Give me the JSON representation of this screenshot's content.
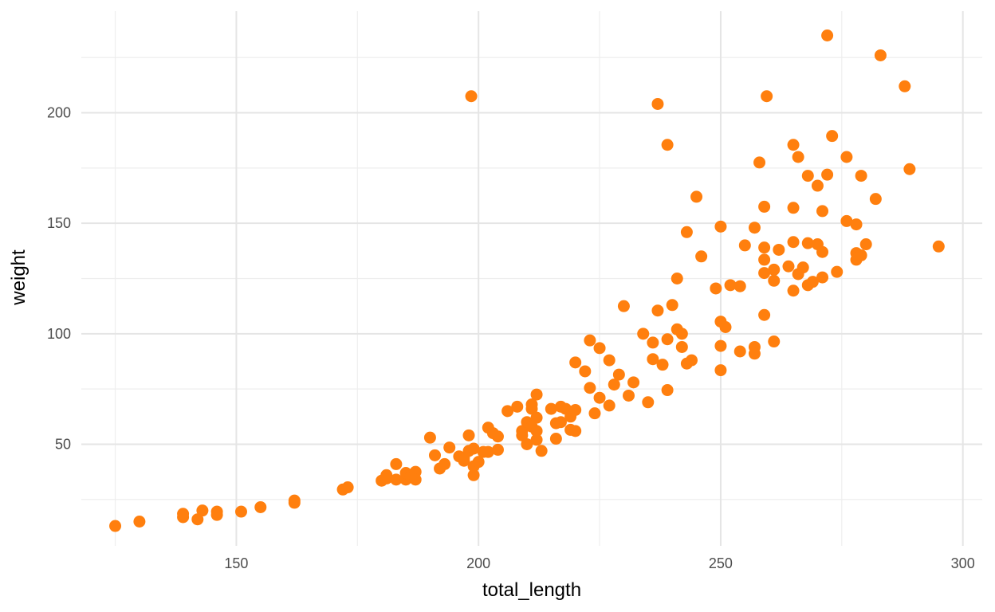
{
  "chart_data": {
    "type": "scatter",
    "xlabel": "total_length",
    "ylabel": "weight",
    "xlim": [
      118,
      304
    ],
    "ylim": [
      4,
      246
    ],
    "x_ticks": [
      150,
      200,
      250,
      300
    ],
    "y_ticks": [
      50,
      100,
      150,
      200
    ],
    "x_tick_labels": [
      "150",
      "200",
      "250",
      "300"
    ],
    "y_tick_labels": [
      "50",
      "100",
      "150",
      "200"
    ],
    "grid": true,
    "legend": "none",
    "point_color": "#FF7F0E",
    "points": [
      [
        125,
        13
      ],
      [
        130,
        15
      ],
      [
        139,
        17
      ],
      [
        139,
        18.5
      ],
      [
        142,
        16
      ],
      [
        143,
        20
      ],
      [
        146,
        18
      ],
      [
        146,
        19.5
      ],
      [
        151,
        19.5
      ],
      [
        155,
        21.5
      ],
      [
        162,
        23.5
      ],
      [
        162,
        24.5
      ],
      [
        172,
        29.5
      ],
      [
        173,
        30.5
      ],
      [
        180,
        33.5
      ],
      [
        181,
        34.5
      ],
      [
        181,
        36
      ],
      [
        183,
        34
      ],
      [
        183,
        41
      ],
      [
        185,
        34
      ],
      [
        185,
        37
      ],
      [
        186,
        35.5
      ],
      [
        187,
        37.5
      ],
      [
        187,
        34
      ],
      [
        190,
        53
      ],
      [
        191,
        45
      ],
      [
        192,
        39
      ],
      [
        193,
        41
      ],
      [
        194,
        48.5
      ],
      [
        196,
        44.5
      ],
      [
        197,
        42.5
      ],
      [
        197,
        44
      ],
      [
        198,
        47
      ],
      [
        198,
        54
      ],
      [
        199,
        36
      ],
      [
        199,
        40
      ],
      [
        199,
        48
      ],
      [
        200,
        42
      ],
      [
        201,
        46.5
      ],
      [
        202,
        57.5
      ],
      [
        202,
        46.5
      ],
      [
        203,
        55
      ],
      [
        204,
        53.5
      ],
      [
        204,
        47.5
      ],
      [
        206,
        65
      ],
      [
        208,
        67
      ],
      [
        209,
        56
      ],
      [
        209,
        54
      ],
      [
        210,
        50
      ],
      [
        210,
        60
      ],
      [
        211,
        66
      ],
      [
        211,
        68
      ],
      [
        211,
        58
      ],
      [
        212,
        72.5
      ],
      [
        212,
        62
      ],
      [
        212,
        56
      ],
      [
        212,
        52
      ],
      [
        213,
        47
      ],
      [
        215,
        66
      ],
      [
        216,
        59.5
      ],
      [
        216,
        52.5
      ],
      [
        217,
        67
      ],
      [
        217,
        60
      ],
      [
        218,
        66
      ],
      [
        219,
        62.5
      ],
      [
        219,
        56.5
      ],
      [
        220,
        65.5
      ],
      [
        220,
        87
      ],
      [
        220,
        56
      ],
      [
        222,
        83
      ],
      [
        223,
        75.5
      ],
      [
        223,
        97
      ],
      [
        224,
        64
      ],
      [
        225,
        71
      ],
      [
        225,
        93.5
      ],
      [
        227,
        88
      ],
      [
        227,
        67.5
      ],
      [
        228,
        77
      ],
      [
        229,
        81.5
      ],
      [
        230,
        112.5
      ],
      [
        231,
        72
      ],
      [
        232,
        78
      ],
      [
        234,
        100
      ],
      [
        235,
        69
      ],
      [
        236,
        96
      ],
      [
        236,
        88.5
      ],
      [
        237,
        110.5
      ],
      [
        238,
        86
      ],
      [
        239,
        97.5
      ],
      [
        239,
        74.5
      ],
      [
        240,
        113
      ],
      [
        241,
        102
      ],
      [
        241,
        125
      ],
      [
        242,
        94
      ],
      [
        242,
        100
      ],
      [
        243,
        86.5
      ],
      [
        243,
        146
      ],
      [
        244,
        88
      ],
      [
        245,
        162
      ],
      [
        246,
        135
      ],
      [
        249,
        120.5
      ],
      [
        250,
        148.5
      ],
      [
        250,
        105.5
      ],
      [
        250,
        94.5
      ],
      [
        250,
        83.5
      ],
      [
        251,
        103
      ],
      [
        252,
        122
      ],
      [
        254,
        121.5
      ],
      [
        254,
        92
      ],
      [
        255,
        140
      ],
      [
        257,
        148
      ],
      [
        257,
        94
      ],
      [
        257,
        91
      ],
      [
        258,
        177.5
      ],
      [
        259,
        157.5
      ],
      [
        259,
        139
      ],
      [
        259,
        133.5
      ],
      [
        259,
        127.5
      ],
      [
        259,
        108.5
      ],
      [
        261,
        129
      ],
      [
        261,
        124
      ],
      [
        261,
        96.5
      ],
      [
        262,
        138
      ],
      [
        264,
        130.5
      ],
      [
        265,
        185.5
      ],
      [
        265,
        157
      ],
      [
        265,
        141.5
      ],
      [
        265,
        119.5
      ],
      [
        266,
        180
      ],
      [
        266,
        127
      ],
      [
        267,
        130
      ],
      [
        268,
        171.5
      ],
      [
        268,
        141
      ],
      [
        268,
        122
      ],
      [
        269,
        123.5
      ],
      [
        270,
        167
      ],
      [
        270,
        140.5
      ],
      [
        271,
        155.5
      ],
      [
        271,
        137
      ],
      [
        271,
        125.5
      ],
      [
        272,
        172
      ],
      [
        273,
        189.5
      ],
      [
        274,
        128
      ],
      [
        276,
        180
      ],
      [
        276,
        151
      ],
      [
        278,
        149.5
      ],
      [
        278,
        136.5
      ],
      [
        278,
        133.5
      ],
      [
        279,
        171.5
      ],
      [
        279,
        135.5
      ],
      [
        280,
        140.5
      ],
      [
        282,
        161
      ],
      [
        237,
        204
      ],
      [
        239,
        185.5
      ],
      [
        198.5,
        207.5
      ],
      [
        259.5,
        207.5
      ],
      [
        272,
        235
      ],
      [
        283,
        226
      ],
      [
        288,
        212
      ],
      [
        289,
        174.5
      ],
      [
        295,
        139.5
      ]
    ]
  }
}
